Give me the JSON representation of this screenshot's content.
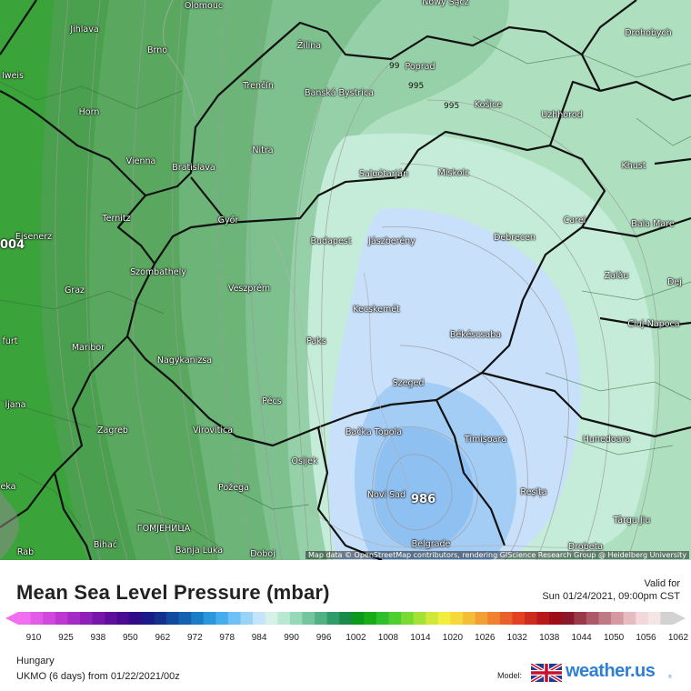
{
  "title": "Mean Sea Level Pressure (mbar)",
  "valid": {
    "label": "Valid for",
    "time": "Sun 01/24/2021, 09:00pm CST"
  },
  "region": "Hungary",
  "model_run": "UKMO (6 days)  from  01/22/2021/00z",
  "model_label": "Model:",
  "brand": "weather.us",
  "brand_suffix": "®",
  "attribution": "Map data © OpenStreetMap contributors, rendering GIScience Research Group @ Heidelberg University",
  "colorbar": {
    "ticks": [
      "910",
      "925",
      "938",
      "950",
      "962",
      "972",
      "978",
      "984",
      "990",
      "996",
      "1002",
      "1008",
      "1014",
      "1020",
      "1026",
      "1032",
      "1038",
      "1044",
      "1050",
      "1056",
      "1062"
    ],
    "colors": [
      "#f06ef0",
      "#e25be6",
      "#d048dc",
      "#bd38d0",
      "#a52bc4",
      "#8e20b8",
      "#7616ab",
      "#5f0f9e",
      "#4a0a92",
      "#2e0c86",
      "#1a1a8a",
      "#14308f",
      "#124a9e",
      "#1262b0",
      "#1a7cc7",
      "#2a96dc",
      "#47acec",
      "#6ec0f5",
      "#9ad2f8",
      "#c4e4fb",
      "#d6f2e8",
      "#b8e8d2",
      "#96d8b8",
      "#74c69e",
      "#52b184",
      "#319c6a",
      "#1c8a4a",
      "#0c9a1c",
      "#18ad18",
      "#2ec02a",
      "#4fce2f",
      "#78da32",
      "#a5e236",
      "#cfe83a",
      "#f2ee3e",
      "#f4d83c",
      "#f4bd38",
      "#f2a034",
      "#ef812f",
      "#e9612a",
      "#e24124",
      "#cf2a1e",
      "#b8191a",
      "#9e0e16",
      "#8a1a2a",
      "#9a3a48",
      "#ad5a66",
      "#c07a84",
      "#d49aa2",
      "#e6bcc0",
      "#f2d8da",
      "#f5e6e6",
      "#d2d2d2"
    ]
  },
  "isobar_labels": [
    {
      "text": "99",
      "big": false
    },
    {
      "text": "995",
      "big": false
    },
    {
      "text": "995",
      "big": false
    },
    {
      "text": "004",
      "big": true
    },
    {
      "text": "986",
      "big": true
    }
  ],
  "cities": [
    "Olomouc",
    "Nowy Sącz",
    "Drohobych",
    "Jihlava",
    "Brno",
    "Žilina",
    "Poprad",
    "Iweis",
    "Trenčín",
    "Banská Bystrica",
    "Košice",
    "Uzhhorod",
    "Horn",
    "Nitra",
    "Vienna",
    "Bratislava",
    "Salgótarján",
    "Miskolc",
    "Khust",
    "Ternitz",
    "Győr",
    "Carei",
    "Baia Mare",
    "Eisenerz",
    "Budapest",
    "Jászberény",
    "Debrecen",
    "Szombathely",
    "Zalău",
    "Graz",
    "Veszprém",
    "Dej",
    "Kecskemét",
    "Cluj-Napoca",
    "furt",
    "Maribor",
    "Paks",
    "Békéscsaba",
    "Nagykanizsa",
    "Szeged",
    "ljana",
    "Pécs",
    "Bačka Topola",
    "Zagreb",
    "Virovitica",
    "Timișoara",
    "Hunedoara",
    "Osijek",
    "eka",
    "Požega",
    "Novi Sad",
    "Reșița",
    "Târgu Jiu",
    "ГОМЈЕНИЦА",
    "Bihać",
    "Banja Luka",
    "Doboj",
    "Belgrade",
    "Drobeta",
    "Rab"
  ]
}
